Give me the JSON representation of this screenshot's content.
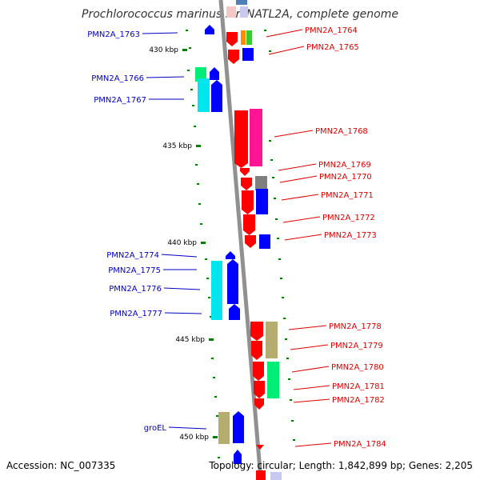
{
  "title": "Prochlorococcus marinus str. NATL2A, complete genome",
  "accession": "Accession: NC_007335",
  "summary": "Topology: circular; Length: 1,842,899 bp; Genes: 2,205",
  "colors": {
    "backbone": "#909090",
    "tick": "#008000",
    "left_label": "#0000c0",
    "right_label": "#e00000",
    "red": "#ff0000",
    "blue": "#0000ff",
    "cyan": "#00e5ee",
    "green": "#00ee76",
    "magenta": "#ff1493",
    "gray": "#7f7f7f",
    "tan": "#b5ad70",
    "orange": "#ff8c00",
    "lime": "#32cd32",
    "slate": "#4e7fb8",
    "lavender": "#c8c8f0",
    "pink": "#f4c8c8"
  },
  "kbp_marks": [
    "430 kbp",
    "435 kbp",
    "440 kbp",
    "445 kbp",
    "450 kbp"
  ],
  "left_labels": [
    "PMN2A_1763",
    "PMN2A_1766",
    "PMN2A_1767",
    "PMN2A_1774",
    "PMN2A_1775",
    "PMN2A_1776",
    "PMN2A_1777",
    "groEL"
  ],
  "right_labels": [
    "PMN2A_1764",
    "PMN2A_1765",
    "PMN2A_1768",
    "PMN2A_1769",
    "PMN2A_1770",
    "PMN2A_1771",
    "PMN2A_1772",
    "PMN2A_1773",
    "PMN2A_1778",
    "PMN2A_1779",
    "PMN2A_1780",
    "PMN2A_1781",
    "PMN2A_1782",
    "PMN2A_1784"
  ]
}
